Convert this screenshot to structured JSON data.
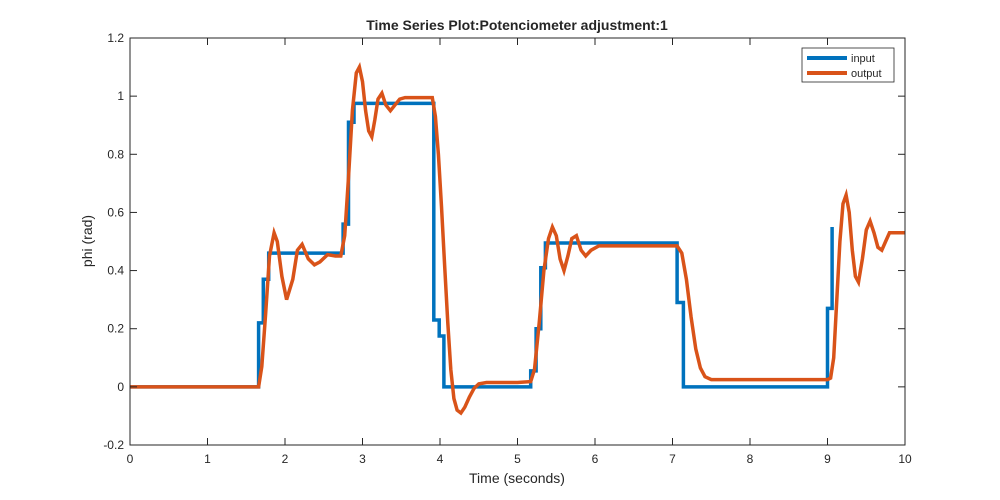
{
  "chart_data": {
    "type": "line",
    "title": "Time Series Plot:Potenciometer adjustment:1",
    "xlabel": "Time (seconds)",
    "ylabel": "phi (rad)",
    "xlim": [
      0,
      10
    ],
    "ylim": [
      -0.2,
      1.2
    ],
    "xticks": [
      0,
      1,
      2,
      3,
      4,
      5,
      6,
      7,
      8,
      9,
      10
    ],
    "xtick_labels": [
      "0",
      "1",
      "2",
      "3",
      "4",
      "5",
      "6",
      "7",
      "8",
      "9",
      "10"
    ],
    "yticks": [
      -0.2,
      0,
      0.2,
      0.4,
      0.6,
      0.8,
      1,
      1.2
    ],
    "ytick_labels": [
      "-0.2",
      "0",
      "0.2",
      "0.4",
      "0.6",
      "0.8",
      "1",
      "1.2"
    ],
    "grid": false,
    "legend_position": "top-right",
    "series": [
      {
        "name": "input",
        "color": "#0072BD",
        "step": true,
        "x": [
          0,
          1.66,
          1.72,
          1.79,
          2.75,
          2.82,
          2.89,
          3.92,
          3.99,
          4.05,
          5.17,
          5.24,
          5.3,
          5.36,
          7.06,
          7.14,
          9.0,
          9.06,
          9.06
        ],
        "y": [
          0,
          0.22,
          0.37,
          0.46,
          0.56,
          0.91,
          0.975,
          0.23,
          0.175,
          0.0,
          0.055,
          0.2,
          0.41,
          0.495,
          0.29,
          0.0,
          0.27,
          0.55,
          0.55
        ]
      },
      {
        "name": "output",
        "color": "#D95319",
        "step": false,
        "x": [
          0,
          1.66,
          1.7,
          1.75,
          1.8,
          1.86,
          1.9,
          1.96,
          2.02,
          2.1,
          2.16,
          2.22,
          2.3,
          2.38,
          2.45,
          2.55,
          2.65,
          2.72,
          2.77,
          2.82,
          2.87,
          2.92,
          2.96,
          3.0,
          3.04,
          3.08,
          3.12,
          3.16,
          3.2,
          3.25,
          3.3,
          3.36,
          3.42,
          3.48,
          3.55,
          3.65,
          3.75,
          3.9,
          3.94,
          3.98,
          4.02,
          4.06,
          4.1,
          4.14,
          4.18,
          4.22,
          4.27,
          4.32,
          4.38,
          4.44,
          4.5,
          4.6,
          4.8,
          5.0,
          5.17,
          5.22,
          5.28,
          5.34,
          5.4,
          5.45,
          5.5,
          5.55,
          5.6,
          5.65,
          5.7,
          5.76,
          5.82,
          5.88,
          5.95,
          6.05,
          6.2,
          6.5,
          6.85,
          7.06,
          7.12,
          7.18,
          7.24,
          7.3,
          7.36,
          7.42,
          7.5,
          7.7,
          8.0,
          8.5,
          9.0,
          9.04,
          9.08,
          9.12,
          9.16,
          9.2,
          9.24,
          9.28,
          9.32,
          9.36,
          9.4,
          9.45,
          9.5,
          9.55,
          9.6,
          9.65,
          9.7,
          9.75,
          9.8,
          9.9,
          10.0
        ],
        "y": [
          0,
          0.0,
          0.07,
          0.25,
          0.45,
          0.53,
          0.5,
          0.38,
          0.3,
          0.37,
          0.47,
          0.49,
          0.44,
          0.42,
          0.43,
          0.455,
          0.45,
          0.45,
          0.52,
          0.72,
          0.95,
          1.08,
          1.1,
          1.05,
          0.95,
          0.88,
          0.86,
          0.92,
          0.99,
          1.01,
          0.97,
          0.95,
          0.97,
          0.99,
          0.995,
          0.995,
          0.995,
          0.995,
          0.93,
          0.8,
          0.62,
          0.42,
          0.22,
          0.06,
          -0.04,
          -0.08,
          -0.09,
          -0.07,
          -0.035,
          -0.005,
          0.01,
          0.015,
          0.015,
          0.015,
          0.018,
          0.06,
          0.22,
          0.4,
          0.51,
          0.55,
          0.52,
          0.44,
          0.4,
          0.45,
          0.51,
          0.52,
          0.47,
          0.45,
          0.47,
          0.485,
          0.485,
          0.485,
          0.485,
          0.485,
          0.46,
          0.37,
          0.24,
          0.13,
          0.065,
          0.035,
          0.025,
          0.025,
          0.025,
          0.025,
          0.025,
          0.03,
          0.1,
          0.3,
          0.5,
          0.63,
          0.66,
          0.6,
          0.47,
          0.38,
          0.36,
          0.44,
          0.54,
          0.57,
          0.53,
          0.48,
          0.47,
          0.5,
          0.53,
          0.53,
          0.53
        ]
      }
    ]
  }
}
